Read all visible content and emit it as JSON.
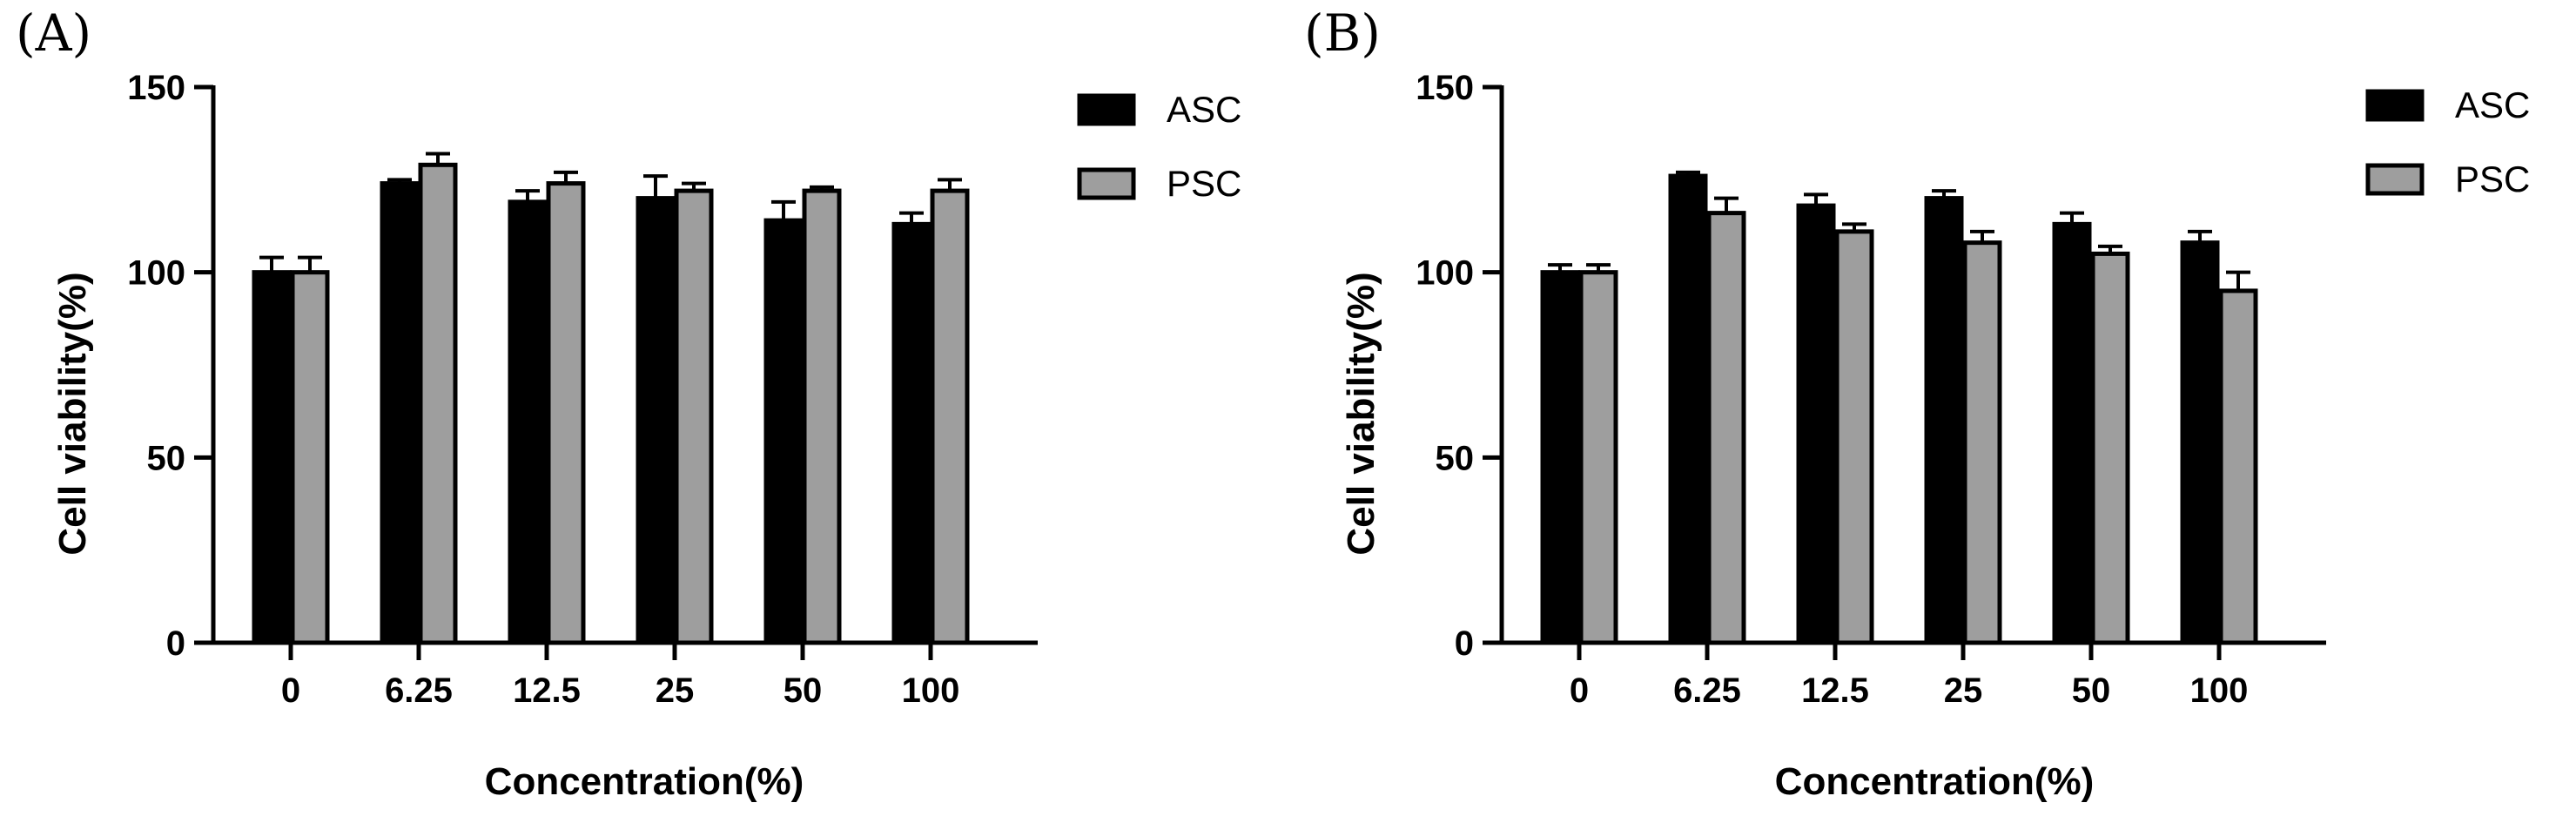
{
  "colors": {
    "asc": "#000000",
    "psc": "#9e9e9e",
    "outline": "#000000"
  },
  "chart_data": [
    {
      "panel_label": "(A)",
      "type": "bar",
      "title": "",
      "xlabel": "Concentration(%)",
      "ylabel": "Cell viability(%)",
      "ylim": [
        0,
        150
      ],
      "yticks": [
        "0",
        "50",
        "100",
        "150"
      ],
      "categories": [
        "0",
        "6.25",
        "12.5",
        "25",
        "50",
        "100"
      ],
      "legend_position": "top-right",
      "series": [
        {
          "name": "ASC",
          "values": [
            100,
            124,
            119,
            120,
            114,
            113
          ],
          "errors": [
            4,
            1,
            3,
            6,
            5,
            3
          ]
        },
        {
          "name": "PSC",
          "values": [
            100,
            129,
            124,
            122,
            122,
            122
          ],
          "errors": [
            4,
            3,
            3,
            2,
            1,
            3
          ]
        }
      ]
    },
    {
      "panel_label": "(B)",
      "type": "bar",
      "title": "",
      "xlabel": "Concentration(%)",
      "ylabel": "Cell viability(%)",
      "ylim": [
        0,
        150
      ],
      "yticks": [
        "0",
        "50",
        "100",
        "150"
      ],
      "categories": [
        "0",
        "6.25",
        "12.5",
        "25",
        "50",
        "100"
      ],
      "legend_position": "top-right",
      "series": [
        {
          "name": "ASC",
          "values": [
            100,
            126,
            118,
            120,
            113,
            108
          ],
          "errors": [
            2,
            1,
            3,
            2,
            3,
            3
          ]
        },
        {
          "name": "PSC",
          "values": [
            100,
            116,
            111,
            108,
            105,
            95
          ],
          "errors": [
            2,
            4,
            2,
            3,
            2,
            5
          ]
        }
      ]
    }
  ]
}
